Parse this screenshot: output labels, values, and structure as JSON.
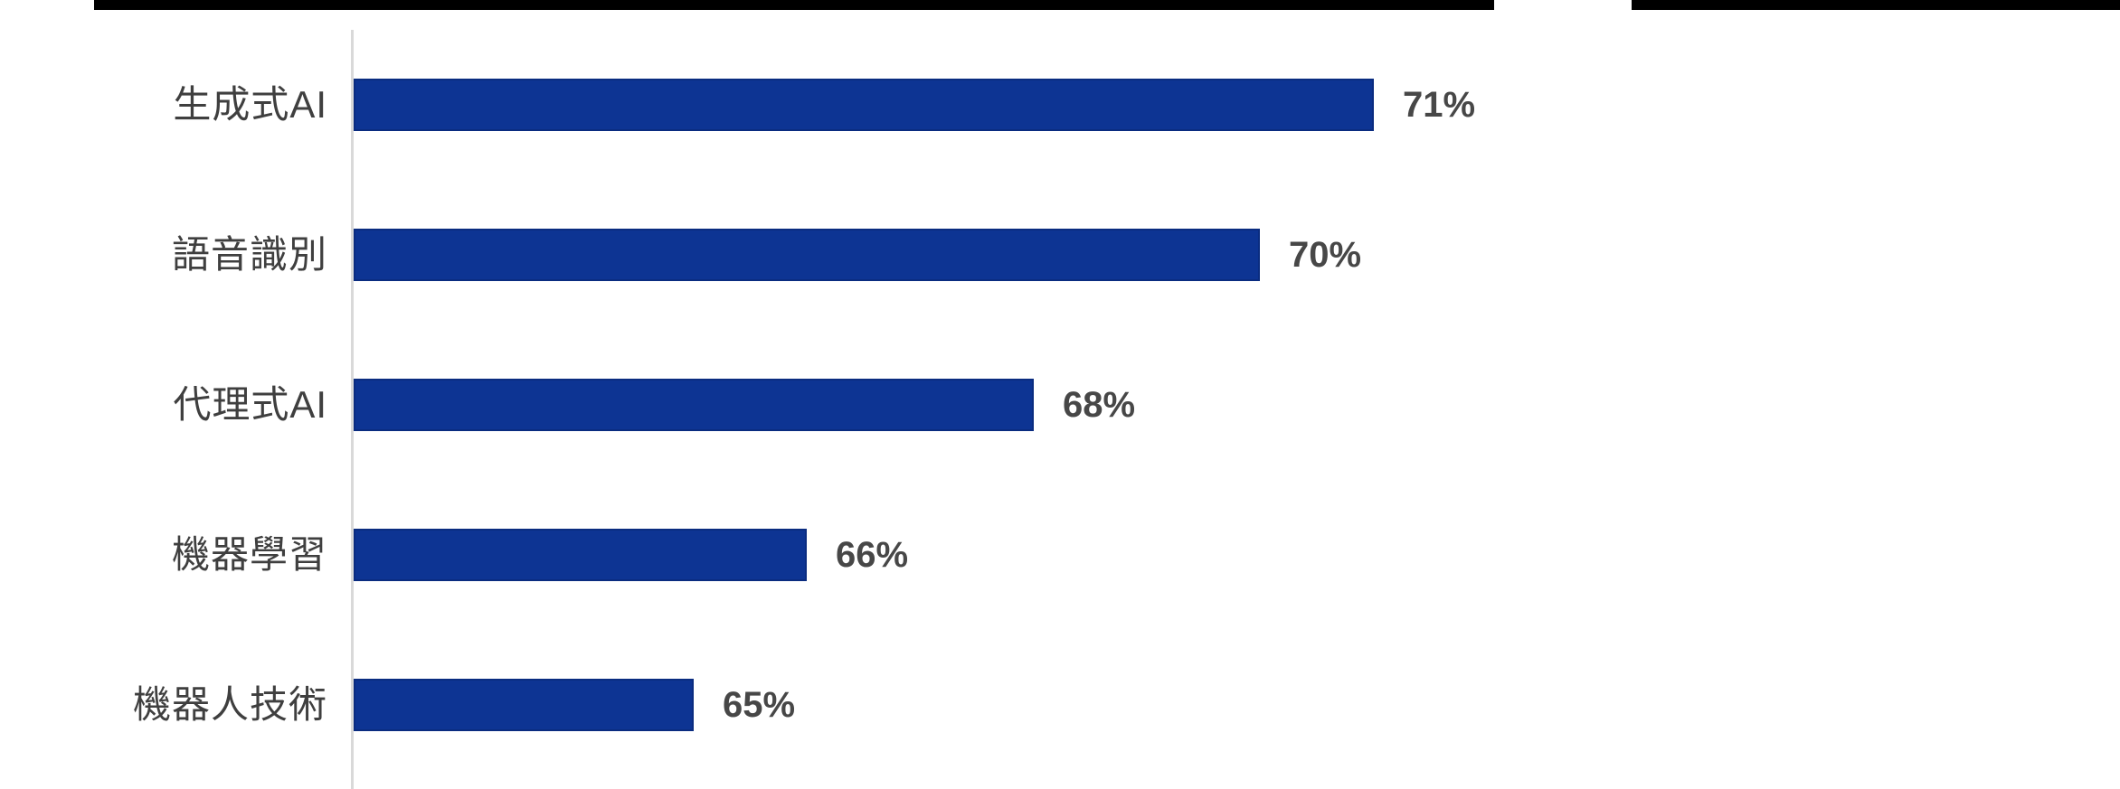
{
  "chart_data": {
    "type": "bar",
    "orientation": "horizontal",
    "title": "",
    "xlabel": "",
    "ylabel": "",
    "categories": [
      "生成式AI",
      "語音識別",
      "代理式AI",
      "機器學習",
      "機器人技術"
    ],
    "values": [
      71,
      70,
      68,
      66,
      65
    ],
    "value_labels": [
      "71%",
      "70%",
      "68%",
      "66%",
      "65%"
    ],
    "value_label_position": "outside-end",
    "xlim": [
      62,
      72
    ],
    "axis_ticks_visible": false,
    "grid": false,
    "legend": false,
    "colors": {
      "bar_fill": "#0d3493",
      "bar_edge": "#0a2c80",
      "category_label_text": "#3f3f3f",
      "value_label_text": "#474747",
      "axis_line": "#d9d9d9",
      "top_border": "#000000",
      "background": "#ffffff"
    }
  }
}
